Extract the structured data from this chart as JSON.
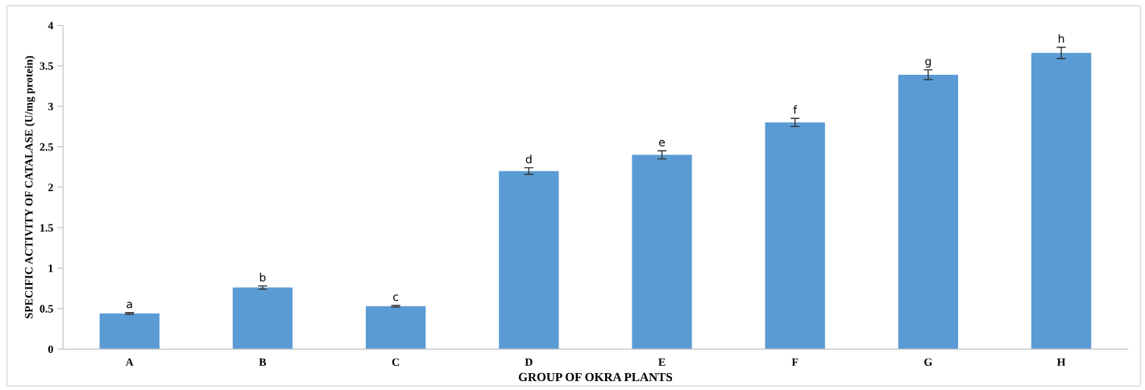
{
  "chart_data": {
    "type": "bar",
    "xlabel": "GROUP OF OKRA PLANTS",
    "ylabel": "SPECIFIC ACTIVITY OF CATALASE (U/mg protein)",
    "categories": [
      "A",
      "B",
      "C",
      "D",
      "E",
      "F",
      "G",
      "H"
    ],
    "values": [
      0.44,
      0.76,
      0.53,
      2.2,
      2.4,
      2.8,
      3.39,
      3.66
    ],
    "errors": [
      0.01,
      0.02,
      0.01,
      0.04,
      0.05,
      0.05,
      0.06,
      0.07
    ],
    "color": "#5b9bd5",
    "ylim": [
      0,
      4
    ],
    "yticks": [
      0,
      0.5,
      1,
      1.5,
      2,
      2.5,
      3,
      3.5,
      4
    ],
    "grid": false,
    "legend": false,
    "annotations": [
      {
        "text": "a",
        "x": "A",
        "y": 0.45
      },
      {
        "text": "b",
        "x": "B",
        "y": 0.78
      },
      {
        "text": "c",
        "x": "C",
        "y": 0.54
      },
      {
        "text": "d",
        "x": "D",
        "y": 2.24
      },
      {
        "text": "e",
        "x": "E",
        "y": 2.45
      },
      {
        "text": "f",
        "x": "F",
        "y": 2.85
      },
      {
        "text": "g",
        "x": "G",
        "y": 3.45
      },
      {
        "text": "h",
        "x": "H",
        "y": 3.73
      }
    ]
  }
}
